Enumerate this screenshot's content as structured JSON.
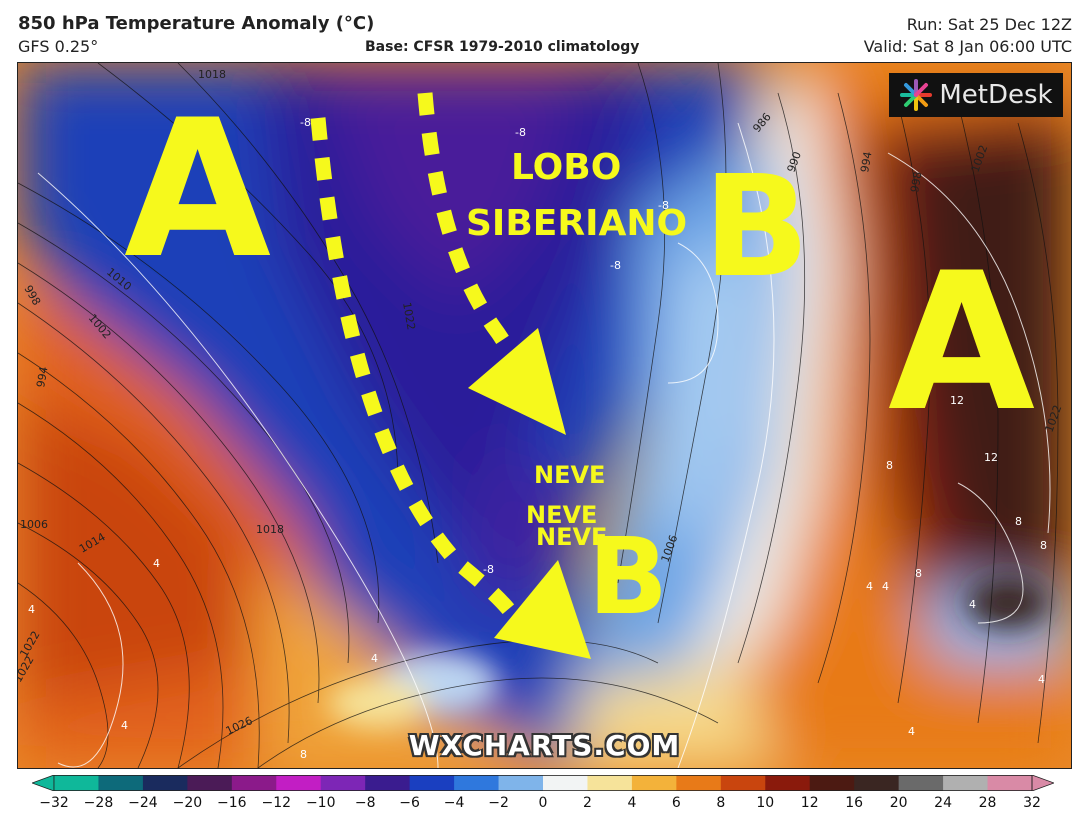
{
  "header": {
    "title": "850 hPa Temperature Anomaly (°C)",
    "model": "GFS 0.25°",
    "base": "Base: CFSR 1979-2010 climatology",
    "run": "Run: Sat 25 Dec 12Z",
    "valid": "Valid: Sat 8 Jan 06:00 UTC"
  },
  "map": {
    "pressure_labels": {
      "h_west": "A",
      "l_north": "B",
      "h_east": "A",
      "l_south": "B"
    },
    "annotations": {
      "lobo_line1": "LOBO",
      "lobo_line2": "SIBERIANO",
      "neve1": "NEVE",
      "neve2": "NEVE",
      "neve3": "NEVE"
    },
    "isobar_labels": [
      "1018",
      "1010",
      "998",
      "1002",
      "994",
      "1006",
      "1014",
      "1022",
      "1026",
      "1018",
      "1022",
      "1006",
      "1002",
      "998",
      "994",
      "990",
      "986",
      "1022",
      "1022"
    ],
    "isotherm_labels": [
      "-8",
      "-8",
      "-8",
      "-8",
      "-8",
      "12",
      "12",
      "8",
      "8",
      "8",
      "4",
      "4",
      "4",
      "4",
      "4",
      "4",
      "4",
      "4",
      "4",
      "8",
      "8"
    ],
    "logo": "MetDesk",
    "watermark": "WXCHARTS.COM"
  },
  "colorbar": {
    "ticks": [
      "−32",
      "−28",
      "−24",
      "−20",
      "−16",
      "−12",
      "−10",
      "−8",
      "−6",
      "−4",
      "−2",
      "0",
      "2",
      "4",
      "6",
      "8",
      "10",
      "12",
      "16",
      "20",
      "24",
      "28",
      "32"
    ],
    "colors": [
      "#0fb89a",
      "#0d6a7a",
      "#1a2b5e",
      "#4b1b57",
      "#8b1a8a",
      "#c21ec4",
      "#7d26b6",
      "#3a1c8f",
      "#1a3fc0",
      "#2f78dd",
      "#7fb4ea",
      "#f2f4f4",
      "#f6e39a",
      "#f3b23a",
      "#e87a18",
      "#c9450e",
      "#8a1a0c",
      "#4c1a12",
      "#3a2622",
      "#6a6a6a",
      "#b0b0b0",
      "#d98aa6"
    ]
  }
}
